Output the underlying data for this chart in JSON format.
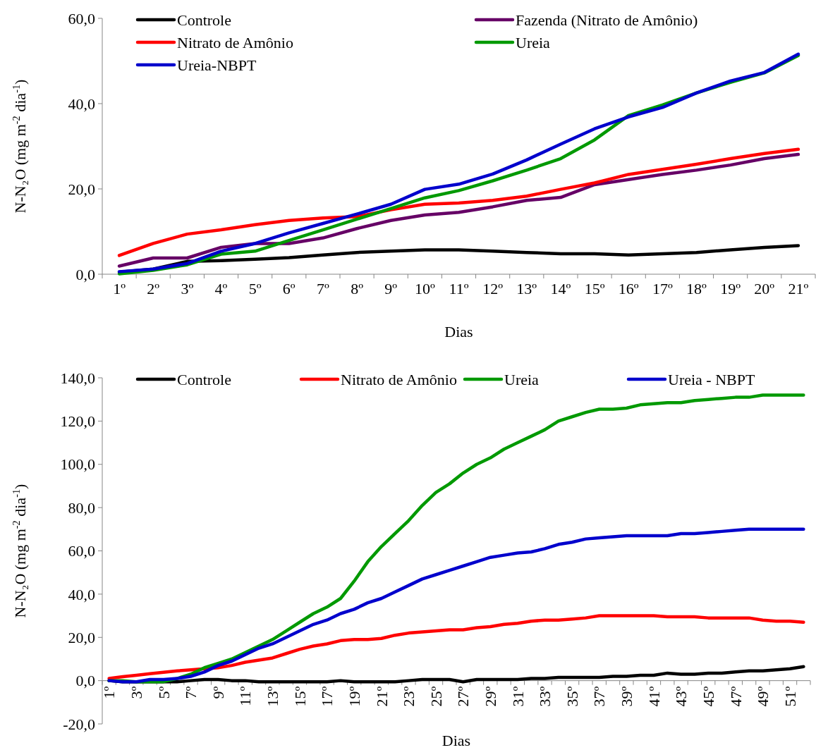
{
  "chart_data": [
    {
      "type": "line",
      "xlabel": "Dias",
      "ylabel": "N-N₂O (mg m$^{-2}$ dia$^{-1}$)",
      "legend": "top",
      "grid": false,
      "line_style": "solid",
      "marker": "none",
      "categories": [
        "1º",
        "2º",
        "3º",
        "4º",
        "5º",
        "6º",
        "7º",
        "8º",
        "9º",
        "10º",
        "11º",
        "12º",
        "13º",
        "14º",
        "15º",
        "16º",
        "17º",
        "18º",
        "19º",
        "20º",
        "21º"
      ],
      "ylim": [
        0,
        60
      ],
      "yticks": [
        {
          "value": 0,
          "label": "0,0"
        },
        {
          "value": 20,
          "label": "20,0"
        },
        {
          "value": 40,
          "label": "40,0"
        },
        {
          "value": 60,
          "label": "60,0"
        }
      ],
      "series": [
        {
          "name": "Controle",
          "color": "#000000",
          "values": [
            0.5,
            1.2,
            3.0,
            3.2,
            3.5,
            3.9,
            4.5,
            5.1,
            5.4,
            5.7,
            5.7,
            5.4,
            5.1,
            4.8,
            4.8,
            4.5,
            4.8,
            5.1,
            5.7,
            6.3,
            6.7
          ]
        },
        {
          "name": "Fazenda (Nitrato de Amônio)",
          "color": "#660066",
          "values": [
            1.9,
            3.8,
            3.8,
            6.3,
            7.2,
            7.2,
            8.5,
            10.7,
            12.6,
            13.9,
            14.5,
            15.8,
            17.3,
            18.0,
            21.0,
            22.2,
            23.4,
            24.4,
            25.6,
            27.1,
            28.1
          ]
        },
        {
          "name": "Nitrato de Amônio",
          "color": "#ff0000",
          "values": [
            4.4,
            7.2,
            9.4,
            10.4,
            11.6,
            12.6,
            13.2,
            13.5,
            15.1,
            16.4,
            16.7,
            17.3,
            18.3,
            19.9,
            21.4,
            23.4,
            24.6,
            25.8,
            27.1,
            28.3,
            29.3
          ]
        },
        {
          "name": "Ureia",
          "color": "#009900",
          "values": [
            0.1,
            0.9,
            2.2,
            4.7,
            5.4,
            7.9,
            10.4,
            12.9,
            15.4,
            17.9,
            19.6,
            21.9,
            24.4,
            27.1,
            31.5,
            37.2,
            39.7,
            42.5,
            45.0,
            47.2,
            51.3
          ]
        },
        {
          "name": "Ureia-NBPT",
          "color": "#0000cc",
          "values": [
            0.6,
            1.2,
            2.5,
            5.4,
            7.2,
            9.7,
            11.9,
            14.1,
            16.4,
            19.9,
            21.1,
            23.5,
            26.8,
            30.5,
            34.1,
            36.9,
            39.1,
            42.5,
            45.3,
            47.3,
            51.6
          ]
        }
      ]
    },
    {
      "type": "line",
      "xlabel": "Dias",
      "ylabel": "N-N₂O (mg m$^{-2}$ dia$^{-1}$)",
      "legend": "top",
      "grid": false,
      "line_style": "solid",
      "marker": "none",
      "categories": [
        "1º",
        null,
        "3º",
        null,
        "5º",
        null,
        "7º",
        null,
        "9º",
        null,
        "11º",
        null,
        "13º",
        null,
        "15º",
        null,
        "17º",
        null,
        "19º",
        null,
        "21º",
        null,
        "23º",
        null,
        "25º",
        null,
        "27º",
        null,
        "29º",
        null,
        "31º",
        null,
        "33º",
        null,
        "35º",
        null,
        "37º",
        null,
        "39º",
        null,
        "41º",
        null,
        "43º",
        null,
        "45º",
        null,
        "47º",
        null,
        "49º",
        null,
        "51º",
        null
      ],
      "ylim": [
        -20,
        140
      ],
      "yticks": [
        {
          "value": -20,
          "label": "-20,0"
        },
        {
          "value": 0,
          "label": "0,0"
        },
        {
          "value": 20,
          "label": "20,0"
        },
        {
          "value": 40,
          "label": "40,0"
        },
        {
          "value": 60,
          "label": "60,0"
        },
        {
          "value": 80,
          "label": "80,0"
        },
        {
          "value": 100,
          "label": "100,0"
        },
        {
          "value": 120,
          "label": "120,0"
        },
        {
          "value": 140,
          "label": "140,0"
        }
      ],
      "series": [
        {
          "name": "Controle",
          "color": "#000000",
          "values": [
            0,
            -0.5,
            -0.5,
            -0.5,
            -0.5,
            -0.5,
            0,
            0.5,
            0.5,
            0,
            0,
            -0.5,
            -0.5,
            -0.5,
            -0.5,
            -0.5,
            -0.5,
            0,
            -0.5,
            -0.5,
            -0.5,
            -0.5,
            0,
            0.5,
            0.5,
            0.5,
            -0.5,
            0.5,
            0.5,
            0.5,
            0.5,
            1,
            1,
            1.5,
            1.5,
            1.5,
            1.5,
            2,
            2,
            2.5,
            2.5,
            3.5,
            3,
            3,
            3.5,
            3.5,
            4,
            4.5,
            4.5,
            5,
            5.5,
            6.5
          ]
        },
        {
          "name": "Nitrato de Amônio",
          "color": "#ff0000",
          "values": [
            1,
            1.8,
            2.5,
            3.2,
            3.9,
            4.5,
            5,
            5.5,
            6,
            7,
            8.5,
            9.5,
            10.5,
            12.5,
            14.5,
            16,
            17,
            18.5,
            19,
            19,
            19.5,
            21,
            22,
            22.5,
            23,
            23.5,
            23.5,
            24.5,
            25,
            26,
            26.5,
            27.5,
            28,
            28,
            28.5,
            29,
            30,
            30,
            30,
            30,
            30,
            29.5,
            29.5,
            29.5,
            29,
            29,
            29,
            29,
            28,
            27.5,
            27.5,
            27
          ]
        },
        {
          "name": "Ureia",
          "color": "#009900",
          "values": [
            0,
            0,
            -0.5,
            -0.5,
            -0.5,
            1,
            3,
            6,
            8,
            10,
            13,
            16,
            19,
            23,
            27,
            31,
            34,
            38,
            46,
            55,
            62,
            68,
            74,
            81,
            87,
            91,
            96,
            100,
            103,
            107,
            110,
            113,
            116,
            120,
            122,
            124,
            125.5,
            125.5,
            126,
            127.5,
            128,
            128.5,
            128.5,
            129.5,
            130,
            130.5,
            131,
            131,
            132,
            132,
            132,
            132
          ]
        },
        {
          "name": "Ureia - NBPT",
          "color": "#0000cc",
          "values": [
            0,
            -0.5,
            -0.5,
            0.5,
            0.5,
            1,
            2,
            4,
            7,
            9,
            12,
            15,
            17,
            20,
            23,
            26,
            28,
            31,
            33,
            36,
            38,
            41,
            44,
            47,
            49,
            51,
            53,
            55,
            57,
            58,
            59,
            59.5,
            61,
            63,
            64,
            65.5,
            66,
            66.5,
            67,
            67,
            67,
            67,
            68,
            68,
            68.5,
            69,
            69.5,
            70,
            70,
            70,
            70,
            70
          ]
        }
      ]
    }
  ]
}
